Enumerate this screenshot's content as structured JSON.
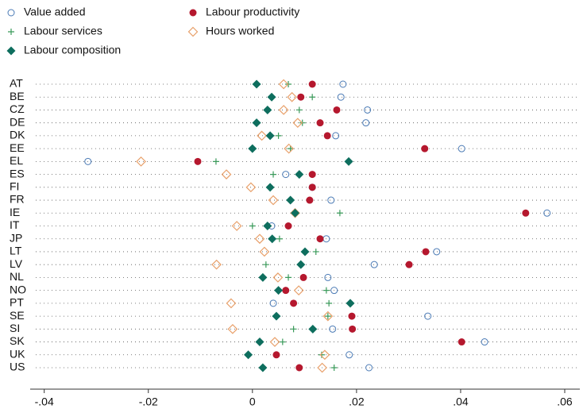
{
  "chart_data": {
    "type": "dot",
    "categories": [
      "AT",
      "BE",
      "CZ",
      "DE",
      "DK",
      "EE",
      "EL",
      "ES",
      "FI",
      "FR",
      "IE",
      "IT",
      "JP",
      "LT",
      "LV",
      "NL",
      "NO",
      "PT",
      "SE",
      "SI",
      "SK",
      "UK",
      "US"
    ],
    "series": [
      {
        "name": "Value added",
        "color": "#4a7ab5",
        "marker": "circle-open",
        "values": [
          0.0174,
          0.017,
          0.0221,
          0.0218,
          0.016,
          0.0402,
          -0.0316,
          0.0064,
          0.0115,
          0.0151,
          0.0566,
          0.0037,
          0.0142,
          0.0354,
          0.0234,
          0.0145,
          0.0157,
          0.004,
          0.0337,
          0.0154,
          0.0446,
          0.0186,
          0.0224
        ]
      },
      {
        "name": "Labour productivity",
        "color": "#b5182e",
        "marker": "circle",
        "values": [
          0.0115,
          0.0093,
          0.0162,
          0.013,
          0.0144,
          0.0331,
          -0.0105,
          0.0115,
          0.0115,
          0.011,
          0.0525,
          0.0069,
          0.013,
          0.0333,
          0.0301,
          0.0098,
          0.0064,
          0.0079,
          0.0191,
          0.0192,
          0.0402,
          0.0046,
          0.009
        ]
      },
      {
        "name": "Labour services",
        "color": "#3a9a5a",
        "marker": "plus",
        "values": [
          0.0069,
          0.0115,
          0.009,
          0.0096,
          0.005,
          0.0073,
          -0.007,
          0.004,
          0.0034,
          0.0072,
          0.0168,
          0,
          0.0052,
          0.0122,
          0.0026,
          0.0069,
          0.0142,
          0.0147,
          0.0145,
          0.0079,
          0.0058,
          0.0133,
          0.0157
        ]
      },
      {
        "name": "Hours worked",
        "color": "#e8a06a",
        "marker": "diamond-open",
        "values": [
          0.006,
          0.0076,
          0.006,
          0.0087,
          0.0018,
          0.007,
          -0.0214,
          -0.005,
          -0.0003,
          0.004,
          0.0082,
          -0.003,
          0.0014,
          0.0023,
          -0.0069,
          0.0049,
          0.0089,
          -0.0041,
          0.0145,
          -0.0038,
          0.0043,
          0.0139,
          0.0134
        ]
      },
      {
        "name": "Labour composition",
        "color": "#0e6e5e",
        "marker": "diamond",
        "values": [
          0.0008,
          0.0037,
          0.0029,
          0.0008,
          0.0034,
          0,
          0.0185,
          0.009,
          0.0034,
          0.0073,
          0.0082,
          0.0029,
          0.0038,
          0.0101,
          0.0093,
          0.002,
          0.005,
          0.0188,
          0.0046,
          0.0116,
          0.0014,
          -0.0008,
          0.002
        ]
      }
    ],
    "xlim": [
      -0.0427,
      0.0629
    ],
    "xticks": [
      {
        "value": -0.04,
        "label": "-.04"
      },
      {
        "value": -0.02,
        "label": "-.02"
      },
      0,
      {
        "value": 0.02,
        "label": ".02"
      },
      {
        "value": 0.04,
        "label": ".04"
      },
      {
        "value": 0.06,
        "label": ".06"
      }
    ]
  }
}
